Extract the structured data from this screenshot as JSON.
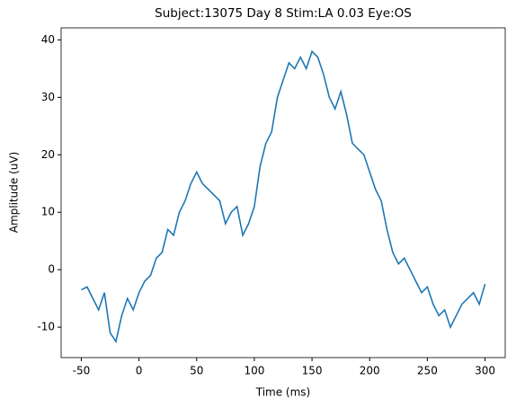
{
  "chart_data": {
    "type": "line",
    "title": "Subject:13075 Day 8 Stim:LA 0.03 Eye:OS",
    "x_label": "Time (ms)",
    "y_label": "Amplitude (uV)",
    "x": [
      -50,
      -45,
      -40,
      -35,
      -30,
      -25,
      -20,
      -15,
      -10,
      -5,
      0,
      5,
      10,
      15,
      20,
      25,
      30,
      35,
      40,
      45,
      50,
      55,
      60,
      65,
      70,
      75,
      80,
      85,
      90,
      95,
      100,
      105,
      110,
      115,
      120,
      125,
      130,
      135,
      140,
      145,
      150,
      155,
      160,
      165,
      170,
      175,
      180,
      185,
      190,
      195,
      200,
      205,
      210,
      215,
      220,
      225,
      230,
      235,
      240,
      245,
      250,
      255,
      260,
      265,
      270,
      275,
      280,
      285,
      290,
      295,
      300
    ],
    "series": [
      {
        "name": "Amplitude",
        "color": "#1f77b4",
        "values": [
          -3.5,
          -3,
          -5,
          -7,
          -4,
          -11,
          -12.5,
          -8,
          -5,
          -7,
          -4,
          -2,
          -1,
          2,
          3,
          7,
          6,
          10,
          12,
          15,
          17,
          15,
          14,
          13,
          12,
          8,
          10,
          11,
          6,
          8,
          11,
          18,
          22,
          24,
          30,
          33,
          36,
          35,
          37,
          35,
          38,
          37,
          34,
          30,
          28,
          31,
          27,
          22,
          21,
          20,
          17,
          14,
          12,
          7,
          3,
          1,
          2,
          0,
          -2,
          -4,
          -3,
          -6,
          -8,
          -7,
          -10,
          -8,
          -6,
          -5,
          -4,
          -6,
          -2.5
        ]
      }
    ],
    "xlim": [
      -67.5,
      317.5
    ],
    "ylim": [
      -15.3,
      42.1
    ],
    "xticks": [
      -50,
      0,
      50,
      100,
      150,
      200,
      250,
      300
    ],
    "yticks": [
      -10,
      0,
      10,
      20,
      30,
      40
    ]
  }
}
